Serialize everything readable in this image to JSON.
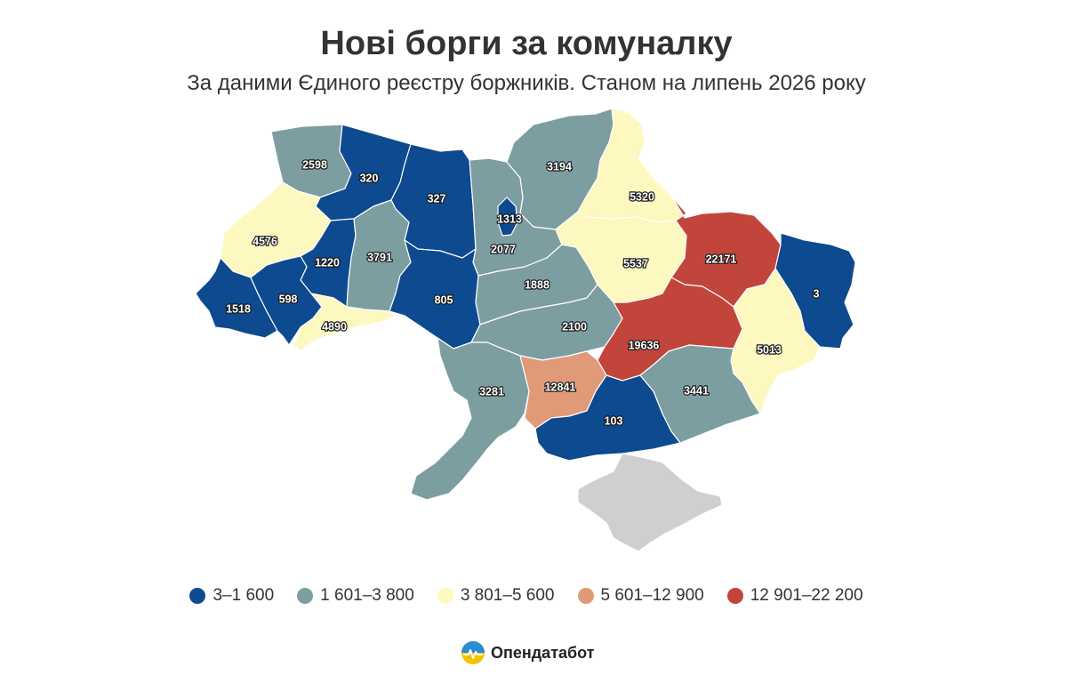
{
  "title": "Нові борги за комуналку",
  "subtitle": "За даними Єдиного реєстру боржників. Станом на липень 2026 року",
  "colors": {
    "bin1": "#0d4a8f",
    "bin2": "#7d9ea0",
    "bin3": "#fdf7c0",
    "bin4": "#e09a78",
    "bin5": "#c1453a",
    "no_data": "#cfcfd2"
  },
  "legend": [
    {
      "label": "3–1 600",
      "color": "#0d4a8f"
    },
    {
      "label": "1 601–3 800",
      "color": "#7d9ea0"
    },
    {
      "label": "3 801–5 600",
      "color": "#fdf7c0"
    },
    {
      "label": "5 601–12 900",
      "color": "#e09a78"
    },
    {
      "label": "12 901–22 200",
      "color": "#c1453a"
    }
  ],
  "regions": [
    {
      "key": "volyn",
      "value": "2598",
      "bin": "bin2"
    },
    {
      "key": "rivne",
      "value": "320",
      "bin": "bin1"
    },
    {
      "key": "zhytomyr",
      "value": "327",
      "bin": "bin1"
    },
    {
      "key": "kyiv_city",
      "value": "1313",
      "bin": "bin1"
    },
    {
      "key": "kyiv_oblast",
      "value": "2077",
      "bin": "bin2"
    },
    {
      "key": "chernihiv",
      "value": "3194",
      "bin": "bin2"
    },
    {
      "key": "sumy",
      "value": "5320",
      "bin": "bin3"
    },
    {
      "key": "lviv",
      "value": "4576",
      "bin": "bin3"
    },
    {
      "key": "ternopil",
      "value": "1220",
      "bin": "bin1"
    },
    {
      "key": "khmelnytskyi",
      "value": "3791",
      "bin": "bin2"
    },
    {
      "key": "vinnytsia",
      "value": "805",
      "bin": "bin1"
    },
    {
      "key": "cherkasy",
      "value": "1888",
      "bin": "bin2"
    },
    {
      "key": "poltava",
      "value": "5537",
      "bin": "bin3"
    },
    {
      "key": "kharkiv",
      "value": "22171",
      "bin": "bin5"
    },
    {
      "key": "luhansk",
      "value": "3",
      "bin": "bin1"
    },
    {
      "key": "zakarpattia",
      "value": "1518",
      "bin": "bin1"
    },
    {
      "key": "ivano_frankivsk",
      "value": "598",
      "bin": "bin1"
    },
    {
      "key": "chernivtsi",
      "value": "4890",
      "bin": "bin3"
    },
    {
      "key": "kirovohrad",
      "value": "2100",
      "bin": "bin2"
    },
    {
      "key": "dnipropetrovsk",
      "value": "19636",
      "bin": "bin5"
    },
    {
      "key": "donetsk",
      "value": "5013",
      "bin": "bin3"
    },
    {
      "key": "odesa",
      "value": "3281",
      "bin": "bin2"
    },
    {
      "key": "mykolaiv",
      "value": "12841",
      "bin": "bin4"
    },
    {
      "key": "kherson",
      "value": "103",
      "bin": "bin1"
    },
    {
      "key": "zaporizhzhia",
      "value": "3441",
      "bin": "bin2"
    },
    {
      "key": "crimea",
      "value": "",
      "bin": "no_data"
    }
  ],
  "brand": {
    "name": "Опендатабот"
  }
}
